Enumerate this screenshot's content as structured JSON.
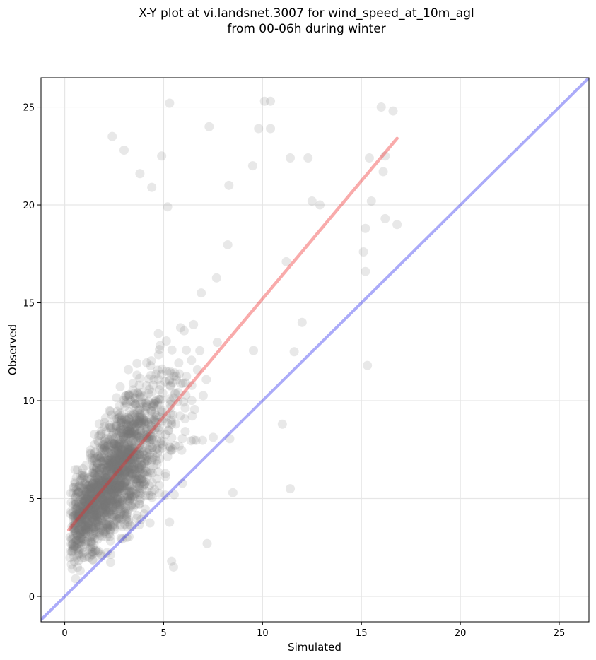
{
  "chart_data": {
    "type": "scatter",
    "title_line1": "X-Y plot at vi.landsnet.3007 for wind_speed_at_10m_agl",
    "title_line2": "from 00-06h during winter",
    "xlabel": "Simulated",
    "ylabel": "Observed",
    "xlim": [
      -1.2,
      26.5
    ],
    "ylim": [
      -1.3,
      26.5
    ],
    "xticks": [
      0,
      5,
      10,
      15,
      20,
      25
    ],
    "yticks": [
      0,
      5,
      10,
      15,
      20,
      25
    ],
    "grid": true,
    "identity_line": {
      "from": [
        -1.2,
        -1.2
      ],
      "to": [
        26.5,
        26.5
      ],
      "color": "#0000ee"
    },
    "fit_line": {
      "from": [
        0.2,
        3.4
      ],
      "to": [
        16.8,
        23.4
      ],
      "color": "#ee2222"
    },
    "point_color": "#777777",
    "point_alpha": 0.17,
    "point_count": 1800,
    "outliers": [
      [
        5.3,
        25.2
      ],
      [
        10.1,
        25.3
      ],
      [
        10.4,
        25.3
      ],
      [
        16.0,
        25.0
      ],
      [
        16.6,
        24.8
      ],
      [
        2.4,
        23.5
      ],
      [
        7.3,
        24.0
      ],
      [
        9.8,
        23.9
      ],
      [
        10.4,
        23.9
      ],
      [
        3.0,
        22.8
      ],
      [
        4.9,
        22.5
      ],
      [
        11.4,
        22.4
      ],
      [
        12.3,
        22.4
      ],
      [
        15.4,
        22.4
      ],
      [
        16.2,
        22.5
      ],
      [
        9.5,
        22.0
      ],
      [
        16.1,
        21.7
      ],
      [
        3.8,
        21.6
      ],
      [
        8.3,
        21.0
      ],
      [
        4.4,
        20.9
      ],
      [
        12.5,
        20.2
      ],
      [
        15.5,
        20.2
      ],
      [
        5.2,
        19.9
      ],
      [
        12.9,
        20.0
      ],
      [
        16.2,
        19.3
      ],
      [
        16.8,
        19.0
      ],
      [
        15.2,
        18.8
      ],
      [
        15.1,
        17.6
      ],
      [
        15.2,
        16.6
      ],
      [
        11.2,
        17.1
      ],
      [
        11.6,
        12.5
      ],
      [
        12.0,
        14.0
      ],
      [
        15.3,
        11.8
      ],
      [
        11.0,
        8.8
      ],
      [
        11.4,
        5.5
      ],
      [
        8.5,
        5.3
      ],
      [
        7.2,
        2.7
      ],
      [
        5.5,
        1.5
      ],
      [
        5.4,
        1.8
      ]
    ]
  }
}
